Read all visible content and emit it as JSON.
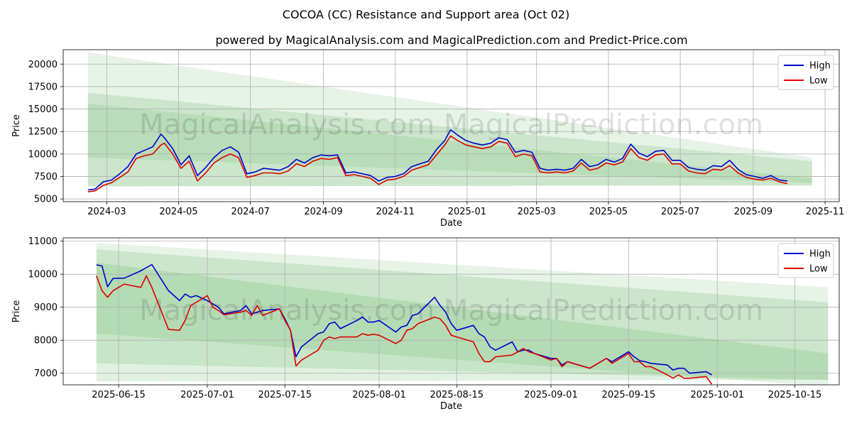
{
  "figure": {
    "title": "COCOA (CC) Resistance and Support area (Oct 02)",
    "subtitle": "powered by MagicalAnalysis.com and MagicalPrediction.com and Predict-Price.com",
    "watermark": "MagicalAnalysis.com   MagicalPrediction.com",
    "colors": {
      "high": "#0000cc",
      "low": "#dd0000",
      "band": "#2e9e2e"
    }
  },
  "chart_data": [
    {
      "type": "line",
      "title": "COCOA (CC) Resistance and Support area (Oct 02)",
      "xlabel": "Date",
      "ylabel": "Price",
      "xlim": [
        "2024-01-24",
        "2025-11-13"
      ],
      "ylim": [
        4700,
        21600
      ],
      "x_ticks": [
        "2024-03-01",
        "2024-05-01",
        "2024-07-01",
        "2024-09-01",
        "2024-11-01",
        "2025-01-01",
        "2025-03-01",
        "2025-05-01",
        "2025-07-01",
        "2025-09-01",
        "2025-11-01"
      ],
      "x_tick_labels": [
        "2024-03",
        "2024-05",
        "2024-07",
        "2024-09",
        "2024-11",
        "2025-01",
        "2025-03",
        "2025-05",
        "2025-07",
        "2025-09",
        "2025-11"
      ],
      "y_ticks": [
        5000,
        7500,
        10000,
        12500,
        15000,
        17500,
        20000
      ],
      "y_tick_labels": [
        "5000",
        "7500",
        "10000",
        "12500",
        "15000",
        "17500",
        "20000"
      ],
      "grid": true,
      "legend": {
        "position": "top-right",
        "entries": [
          "High",
          "Low"
        ]
      },
      "bands": [
        {
          "x": [
            "2024-02-14",
            "2025-10-21"
          ],
          "upper": [
            21300,
            9600
          ],
          "lower": [
            6400,
            6500
          ],
          "opacity": 0.12
        },
        {
          "x": [
            "2024-02-14",
            "2025-10-21"
          ],
          "upper": [
            16800,
            9200
          ],
          "lower": [
            6400,
            6500
          ],
          "opacity": 0.14
        },
        {
          "x": [
            "2024-02-14",
            "2025-10-21"
          ],
          "upper": [
            15600,
            7300
          ],
          "lower": [
            9600,
            6800
          ],
          "opacity": 0.12
        }
      ],
      "series": [
        {
          "name": "High",
          "x": [
            "2024-02-14",
            "2024-02-20",
            "2024-02-27",
            "2024-03-05",
            "2024-03-12",
            "2024-03-19",
            "2024-03-26",
            "2024-04-02",
            "2024-04-09",
            "2024-04-16",
            "2024-04-19",
            "2024-04-26",
            "2024-05-03",
            "2024-05-10",
            "2024-05-17",
            "2024-05-24",
            "2024-05-31",
            "2024-06-07",
            "2024-06-14",
            "2024-06-21",
            "2024-06-28",
            "2024-07-05",
            "2024-07-12",
            "2024-07-19",
            "2024-07-26",
            "2024-08-02",
            "2024-08-09",
            "2024-08-16",
            "2024-08-23",
            "2024-08-30",
            "2024-09-06",
            "2024-09-13",
            "2024-09-20",
            "2024-09-27",
            "2024-10-04",
            "2024-10-11",
            "2024-10-18",
            "2024-10-25",
            "2024-11-01",
            "2024-11-08",
            "2024-11-15",
            "2024-11-22",
            "2024-11-29",
            "2024-12-06",
            "2024-12-13",
            "2024-12-18",
            "2024-12-24",
            "2024-12-31",
            "2025-01-07",
            "2025-01-14",
            "2025-01-21",
            "2025-01-28",
            "2025-02-04",
            "2025-02-11",
            "2025-02-18",
            "2025-02-25",
            "2025-03-04",
            "2025-03-11",
            "2025-03-18",
            "2025-03-25",
            "2025-04-01",
            "2025-04-08",
            "2025-04-15",
            "2025-04-22",
            "2025-04-29",
            "2025-05-06",
            "2025-05-13",
            "2025-05-20",
            "2025-05-27",
            "2025-06-03",
            "2025-06-10",
            "2025-06-17",
            "2025-06-24",
            "2025-07-01",
            "2025-07-08",
            "2025-07-15",
            "2025-07-22",
            "2025-07-29",
            "2025-08-05",
            "2025-08-12",
            "2025-08-19",
            "2025-08-26",
            "2025-09-02",
            "2025-09-09",
            "2025-09-16",
            "2025-09-23",
            "2025-09-30"
          ],
          "values": [
            6000,
            6100,
            6900,
            7100,
            7800,
            8600,
            10000,
            10400,
            10800,
            12200,
            11800,
            10600,
            8800,
            9800,
            7600,
            8500,
            9600,
            10400,
            10800,
            10200,
            7800,
            8000,
            8400,
            8300,
            8200,
            8600,
            9400,
            9000,
            9600,
            9900,
            9800,
            9900,
            7900,
            8000,
            7800,
            7600,
            7000,
            7400,
            7500,
            7800,
            8600,
            8900,
            9200,
            10500,
            11500,
            12700,
            12100,
            11500,
            11200,
            11000,
            11200,
            11800,
            11600,
            10200,
            10400,
            10200,
            8400,
            8200,
            8300,
            8200,
            8400,
            9400,
            8600,
            8800,
            9400,
            9100,
            9500,
            11100,
            10100,
            9700,
            10300,
            10400,
            9300,
            9300,
            8500,
            8300,
            8200,
            8700,
            8600,
            9300,
            8300,
            7700,
            7500,
            7300,
            7600,
            7100,
            7000
          ]
        },
        {
          "name": "Low",
          "x": [
            "2024-02-14",
            "2024-02-20",
            "2024-02-27",
            "2024-03-05",
            "2024-03-12",
            "2024-03-19",
            "2024-03-26",
            "2024-04-02",
            "2024-04-09",
            "2024-04-16",
            "2024-04-19",
            "2024-04-26",
            "2024-05-03",
            "2024-05-10",
            "2024-05-17",
            "2024-05-24",
            "2024-05-31",
            "2024-06-07",
            "2024-06-14",
            "2024-06-21",
            "2024-06-28",
            "2024-07-05",
            "2024-07-12",
            "2024-07-19",
            "2024-07-26",
            "2024-08-02",
            "2024-08-09",
            "2024-08-16",
            "2024-08-23",
            "2024-08-30",
            "2024-09-06",
            "2024-09-13",
            "2024-09-20",
            "2024-09-27",
            "2024-10-04",
            "2024-10-11",
            "2024-10-18",
            "2024-10-25",
            "2024-11-01",
            "2024-11-08",
            "2024-11-15",
            "2024-11-22",
            "2024-11-29",
            "2024-12-06",
            "2024-12-13",
            "2024-12-18",
            "2024-12-24",
            "2024-12-31",
            "2025-01-07",
            "2025-01-14",
            "2025-01-21",
            "2025-01-28",
            "2025-02-04",
            "2025-02-11",
            "2025-02-18",
            "2025-02-25",
            "2025-03-04",
            "2025-03-11",
            "2025-03-18",
            "2025-03-25",
            "2025-04-01",
            "2025-04-08",
            "2025-04-15",
            "2025-04-22",
            "2025-04-29",
            "2025-05-06",
            "2025-05-13",
            "2025-05-20",
            "2025-05-27",
            "2025-06-03",
            "2025-06-10",
            "2025-06-17",
            "2025-06-24",
            "2025-07-01",
            "2025-07-08",
            "2025-07-15",
            "2025-07-22",
            "2025-07-29",
            "2025-08-05",
            "2025-08-12",
            "2025-08-19",
            "2025-08-26",
            "2025-09-02",
            "2025-09-09",
            "2025-09-16",
            "2025-09-23",
            "2025-09-30"
          ],
          "values": [
            5800,
            5900,
            6500,
            6800,
            7400,
            8000,
            9500,
            9800,
            10000,
            11000,
            11200,
            10000,
            8400,
            9200,
            7000,
            7900,
            9000,
            9600,
            10000,
            9600,
            7400,
            7600,
            7900,
            7900,
            7800,
            8100,
            8900,
            8600,
            9200,
            9500,
            9400,
            9600,
            7600,
            7700,
            7500,
            7300,
            6600,
            7100,
            7200,
            7500,
            8200,
            8500,
            8800,
            9900,
            11000,
            12000,
            11500,
            11000,
            10800,
            10600,
            10800,
            11400,
            11200,
            9700,
            10000,
            9800,
            8000,
            7900,
            8000,
            7900,
            8100,
            9000,
            8200,
            8400,
            9000,
            8800,
            9100,
            10600,
            9600,
            9300,
            9900,
            10000,
            8900,
            8900,
            8100,
            7900,
            7800,
            8300,
            8200,
            8700,
            7900,
            7400,
            7200,
            7100,
            7300,
            6900,
            6700
          ]
        }
      ]
    },
    {
      "type": "line",
      "title": "",
      "xlabel": "Date",
      "ylabel": "Price",
      "xlim": [
        "2025-06-05",
        "2025-10-23"
      ],
      "ylim": [
        6650,
        11100
      ],
      "x_ticks": [
        "2025-06-15",
        "2025-07-01",
        "2025-07-15",
        "2025-08-01",
        "2025-08-15",
        "2025-09-01",
        "2025-09-15",
        "2025-10-01",
        "2025-10-15"
      ],
      "x_tick_labels": [
        "2025-06-15",
        "2025-07-01",
        "2025-07-15",
        "2025-08-01",
        "2025-08-15",
        "2025-09-01",
        "2025-09-15",
        "2025-10-01",
        "2025-10-15"
      ],
      "y_ticks": [
        7000,
        8000,
        9000,
        10000,
        11000
      ],
      "y_tick_labels": [
        "7000",
        "8000",
        "9000",
        "10000",
        "11000"
      ],
      "grid": true,
      "legend": {
        "position": "top-right",
        "entries": [
          "High",
          "Low"
        ]
      },
      "bands": [
        {
          "x": [
            "2025-06-11",
            "2025-10-21"
          ],
          "upper": [
            10950,
            9600
          ],
          "lower": [
            8200,
            6600
          ],
          "opacity": 0.12
        },
        {
          "x": [
            "2025-06-11",
            "2025-10-21"
          ],
          "upper": [
            10750,
            9150
          ],
          "lower": [
            7300,
            6800
          ],
          "opacity": 0.14
        },
        {
          "x": [
            "2025-06-11",
            "2025-10-21"
          ],
          "upper": [
            10350,
            7600
          ],
          "lower": [
            6750,
            6800
          ],
          "opacity": 0.14
        }
      ],
      "series": [
        {
          "name": "High",
          "x": [
            "2025-06-11",
            "2025-06-12",
            "2025-06-13",
            "2025-06-14",
            "2025-06-16",
            "2025-06-19",
            "2025-06-20",
            "2025-06-21",
            "2025-06-24",
            "2025-06-26",
            "2025-06-27",
            "2025-06-28",
            "2025-06-29",
            "2025-07-01",
            "2025-07-02",
            "2025-07-03",
            "2025-07-04",
            "2025-07-07",
            "2025-07-08",
            "2025-07-09",
            "2025-07-10",
            "2025-07-11",
            "2025-07-14",
            "2025-07-15",
            "2025-07-16",
            "2025-07-17",
            "2025-07-18",
            "2025-07-21",
            "2025-07-22",
            "2025-07-23",
            "2025-07-24",
            "2025-07-25",
            "2025-07-28",
            "2025-07-29",
            "2025-07-30",
            "2025-07-31",
            "2025-08-01",
            "2025-08-04",
            "2025-08-05",
            "2025-08-06",
            "2025-08-07",
            "2025-08-08",
            "2025-08-11",
            "2025-08-12",
            "2025-08-13",
            "2025-08-14",
            "2025-08-15",
            "2025-08-18",
            "2025-08-19",
            "2025-08-20",
            "2025-08-21",
            "2025-08-22",
            "2025-08-25",
            "2025-08-26",
            "2025-08-27",
            "2025-08-28",
            "2025-08-29",
            "2025-09-01",
            "2025-09-02",
            "2025-09-03",
            "2025-09-04",
            "2025-09-05",
            "2025-09-08",
            "2025-09-09",
            "2025-09-10",
            "2025-09-11",
            "2025-09-12",
            "2025-09-15",
            "2025-09-16",
            "2025-09-17",
            "2025-09-18",
            "2025-09-19",
            "2025-09-22",
            "2025-09-23",
            "2025-09-24",
            "2025-09-25",
            "2025-09-26",
            "2025-09-29",
            "2025-09-30"
          ],
          "values": [
            10280,
            10250,
            9620,
            9870,
            9880,
            10100,
            10200,
            10290,
            9500,
            9200,
            9400,
            9300,
            9350,
            9200,
            9100,
            9000,
            8800,
            8900,
            9050,
            8800,
            8850,
            8900,
            8950,
            8650,
            8300,
            7500,
            7800,
            8200,
            8250,
            8500,
            8550,
            8350,
            8600,
            8700,
            8550,
            8550,
            8600,
            8250,
            8400,
            8450,
            8750,
            8800,
            9300,
            9050,
            8850,
            8500,
            8300,
            8450,
            8200,
            8100,
            7800,
            7700,
            7950,
            7650,
            7700,
            7700,
            7600,
            7450,
            7450,
            7250,
            7350,
            7300,
            7150,
            7250,
            7350,
            7450,
            7350,
            7650,
            7500,
            7380,
            7350,
            7300,
            7250,
            7100,
            7150,
            7150,
            7000,
            7050,
            6950
          ]
        },
        {
          "name": "Low",
          "x": [
            "2025-06-11",
            "2025-06-12",
            "2025-06-13",
            "2025-06-14",
            "2025-06-16",
            "2025-06-19",
            "2025-06-20",
            "2025-06-21",
            "2025-06-24",
            "2025-06-26",
            "2025-06-27",
            "2025-06-28",
            "2025-06-29",
            "2025-07-01",
            "2025-07-02",
            "2025-07-03",
            "2025-07-04",
            "2025-07-07",
            "2025-07-08",
            "2025-07-09",
            "2025-07-10",
            "2025-07-11",
            "2025-07-14",
            "2025-07-15",
            "2025-07-16",
            "2025-07-17",
            "2025-07-18",
            "2025-07-21",
            "2025-07-22",
            "2025-07-23",
            "2025-07-24",
            "2025-07-25",
            "2025-07-28",
            "2025-07-29",
            "2025-07-30",
            "2025-07-31",
            "2025-08-01",
            "2025-08-04",
            "2025-08-05",
            "2025-08-06",
            "2025-08-07",
            "2025-08-08",
            "2025-08-11",
            "2025-08-12",
            "2025-08-13",
            "2025-08-14",
            "2025-08-15",
            "2025-08-18",
            "2025-08-19",
            "2025-08-20",
            "2025-08-21",
            "2025-08-22",
            "2025-08-25",
            "2025-08-26",
            "2025-08-27",
            "2025-08-28",
            "2025-08-29",
            "2025-09-01",
            "2025-09-02",
            "2025-09-03",
            "2025-09-04",
            "2025-09-05",
            "2025-09-08",
            "2025-09-09",
            "2025-09-10",
            "2025-09-11",
            "2025-09-12",
            "2025-09-15",
            "2025-09-16",
            "2025-09-17",
            "2025-09-18",
            "2025-09-19",
            "2025-09-22",
            "2025-09-23",
            "2025-09-24",
            "2025-09-25",
            "2025-09-26",
            "2025-09-29",
            "2025-09-30"
          ],
          "values": [
            9950,
            9500,
            9300,
            9500,
            9700,
            9600,
            9950,
            9600,
            8330,
            8300,
            8600,
            9050,
            9150,
            9350,
            9000,
            8900,
            8770,
            8850,
            8900,
            8750,
            9050,
            8750,
            8950,
            8600,
            8300,
            7220,
            7400,
            7700,
            8000,
            8100,
            8050,
            8100,
            8100,
            8200,
            8150,
            8180,
            8150,
            7900,
            8000,
            8300,
            8350,
            8500,
            8700,
            8650,
            8450,
            8150,
            8100,
            7950,
            7600,
            7350,
            7350,
            7500,
            7550,
            7650,
            7750,
            7650,
            7600,
            7400,
            7450,
            7200,
            7350,
            7300,
            7150,
            7250,
            7350,
            7450,
            7300,
            7600,
            7350,
            7350,
            7200,
            7200,
            6950,
            6850,
            6950,
            6850,
            6850,
            6900,
            6670
          ]
        }
      ]
    }
  ]
}
